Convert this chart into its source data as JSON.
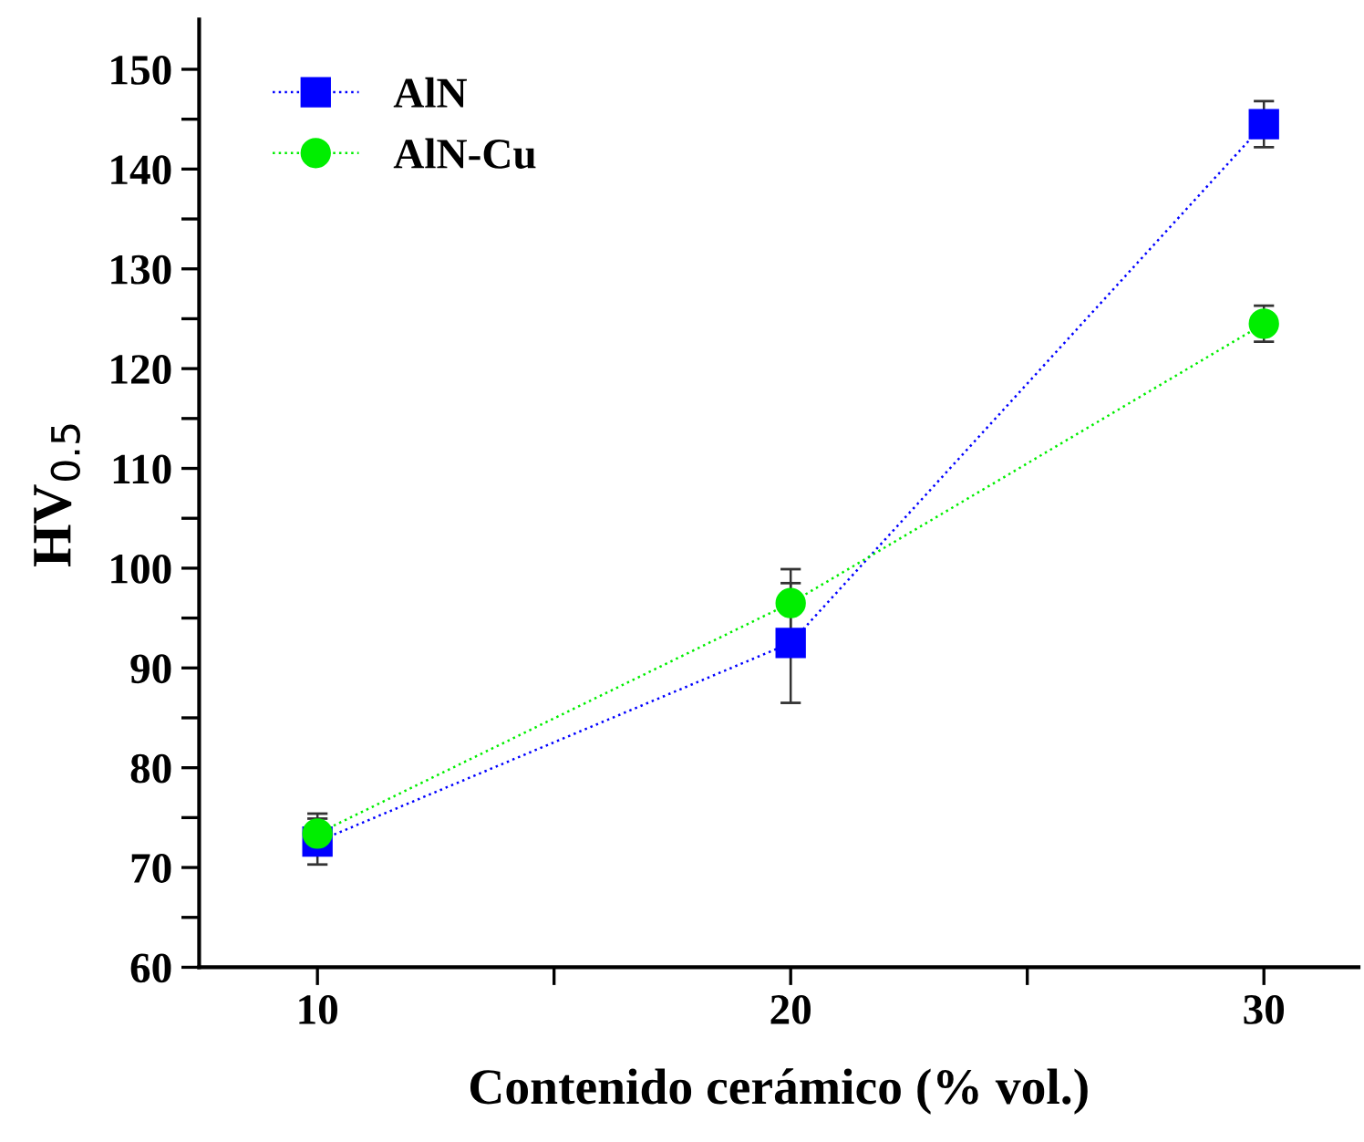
{
  "chart_data": {
    "type": "line",
    "xlabel": "Contenido cerámico (% vol.)",
    "ylabel": "HV$_{0.5}$",
    "x": [
      10,
      20,
      30
    ],
    "series": [
      {
        "name": "AlN",
        "color": "#0000ff",
        "marker": "square",
        "values": [
          72.6,
          92.5,
          144.5
        ],
        "errors": [
          2.3,
          6,
          2.3
        ]
      },
      {
        "name": "AlN-Cu",
        "color": "#00ee00",
        "marker": "circle",
        "values": [
          73.4,
          96.5,
          124.5
        ],
        "errors": [
          2,
          3.4,
          1.8
        ]
      }
    ],
    "line_style": "dotted",
    "xlim": [
      7.5,
      32
    ],
    "xticks": [
      10,
      {
        "value": 15,
        "label": null
      },
      20,
      {
        "value": 25,
        "label": null
      },
      30
    ],
    "ylim": [
      60,
      155
    ],
    "yticks": [
      60,
      {
        "value": 65,
        "label": null
      },
      70,
      {
        "value": 75,
        "label": null
      },
      80,
      {
        "value": 85,
        "label": null
      },
      90,
      {
        "value": 95,
        "label": null
      },
      100,
      {
        "value": 105,
        "label": null
      },
      110,
      {
        "value": 115,
        "label": null
      },
      120,
      {
        "value": 125,
        "label": null
      },
      130,
      {
        "value": 135,
        "label": null
      },
      140,
      {
        "value": 145,
        "label": null
      },
      150
    ],
    "grid": false,
    "legend": "top left"
  }
}
